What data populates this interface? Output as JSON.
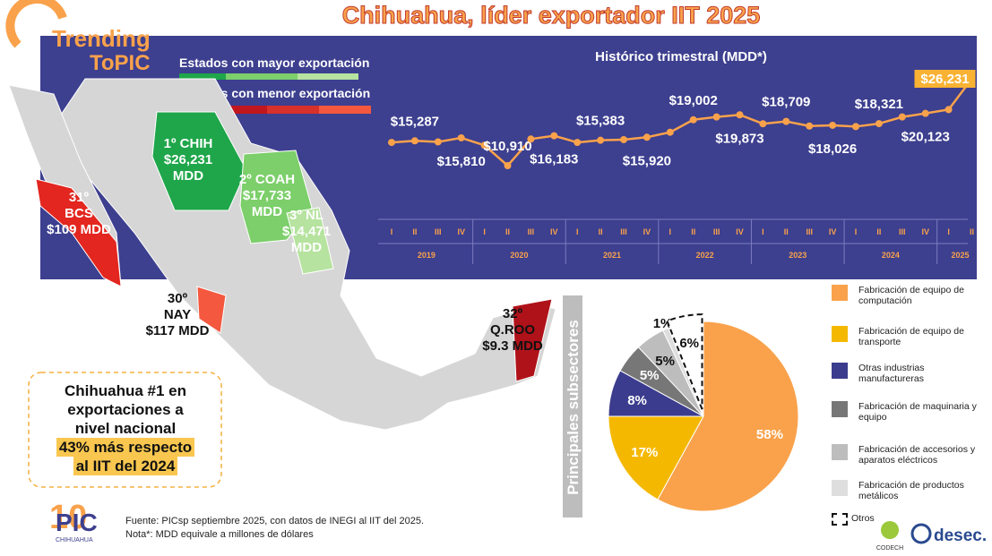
{
  "header": {
    "title": "Chihuahua, líder exportador IIT 2025",
    "logo_line1": "Trending",
    "logo_line2": "ToPIC"
  },
  "map": {
    "legend_high": "Estados con mayor exportación",
    "legend_low": "Estados con menor exportación",
    "states": [
      {
        "lines": [
          "1º CHIH",
          "$26,231",
          "MDD"
        ]
      },
      {
        "lines": [
          "2º COAH",
          "$17,733",
          "MDD"
        ]
      },
      {
        "lines": [
          "3º NL",
          "$14,471",
          "MDD"
        ]
      },
      {
        "lines": [
          "31º",
          "BCS",
          "$109 MDD"
        ]
      },
      {
        "lines": [
          "30º",
          "NAY",
          "$117 MDD"
        ]
      },
      {
        "lines": [
          "32º",
          "Q.ROO",
          "$9.3 MDD"
        ]
      }
    ]
  },
  "callout": {
    "lines": [
      "Chihuahua #1 en",
      "exportaciones a",
      "nivel nacional"
    ],
    "highlight": [
      "43% más respecto",
      "al IIT del 2024"
    ]
  },
  "chart_data": [
    {
      "type": "line",
      "title": "Histórico trimestral (MDD*)",
      "color": "#f9a24b",
      "groups": [
        {
          "name": "2019",
          "categories": [
            "I",
            "II",
            "III",
            "IV"
          ]
        },
        {
          "name": "2020",
          "categories": [
            "I",
            "II",
            "III",
            "IV"
          ]
        },
        {
          "name": "2021",
          "categories": [
            "I",
            "II",
            "III",
            "IV"
          ]
        },
        {
          "name": "2022",
          "categories": [
            "I",
            "II",
            "III",
            "IV"
          ]
        },
        {
          "name": "2023",
          "categories": [
            "I",
            "II",
            "III",
            "IV"
          ]
        },
        {
          "name": "2024",
          "categories": [
            "I",
            "II",
            "III",
            "IV"
          ]
        },
        {
          "name": "2025",
          "categories": [
            "I",
            "II"
          ]
        }
      ],
      "values": [
        15000,
        15287,
        15100,
        15810,
        14500,
        10910,
        15600,
        16183,
        15000,
        15383,
        15500,
        15920,
        16800,
        19002,
        19500,
        19873,
        18300,
        18709,
        17900,
        18026,
        17800,
        18321,
        19500,
        20123,
        20800,
        26231
      ],
      "value_labels": [
        null,
        "$15,287",
        null,
        "$15,810",
        null,
        "$10,910",
        null,
        "$16,183",
        null,
        "$15,383",
        null,
        "$15,920",
        null,
        "$19,002",
        null,
        "$19,873",
        null,
        "$18,709",
        null,
        "$18,026",
        null,
        "$18,321",
        null,
        "$20,123",
        null,
        "$26,231"
      ]
    },
    {
      "type": "pie",
      "title": "Principales subsectores",
      "categories": [
        "Fabricación de equipo de computación",
        "Fabricación de equipo de transporte",
        "Otras industrias manufactureras",
        "Fabricación de maquinaria y equipo",
        "Fabricación de accesorios y aparatos eléctricos",
        "Fabricación de productos metálicos",
        "Otros"
      ],
      "values": [
        58,
        17,
        8,
        5,
        5,
        1,
        6
      ],
      "value_labels": [
        "58%",
        "17%",
        "8%",
        "5%",
        "5%",
        "1%",
        "6%"
      ],
      "colors": [
        "#f9a24b",
        "#f5b800",
        "#3b3c8e",
        "#777777",
        "#bdbdbd",
        "#dedede",
        "#ffffff"
      ]
    }
  ],
  "footer": {
    "source": "Fuente:  PICsp septiembre 2025, con datos de INEGI al IIT del 2025.",
    "note": "Nota*:  MDD equivale a millones de dólares",
    "logo_pic": "PIC",
    "logo_city": "CHIHUAHUA",
    "logo_codech": "CODECH",
    "logo_desec": "desec."
  }
}
